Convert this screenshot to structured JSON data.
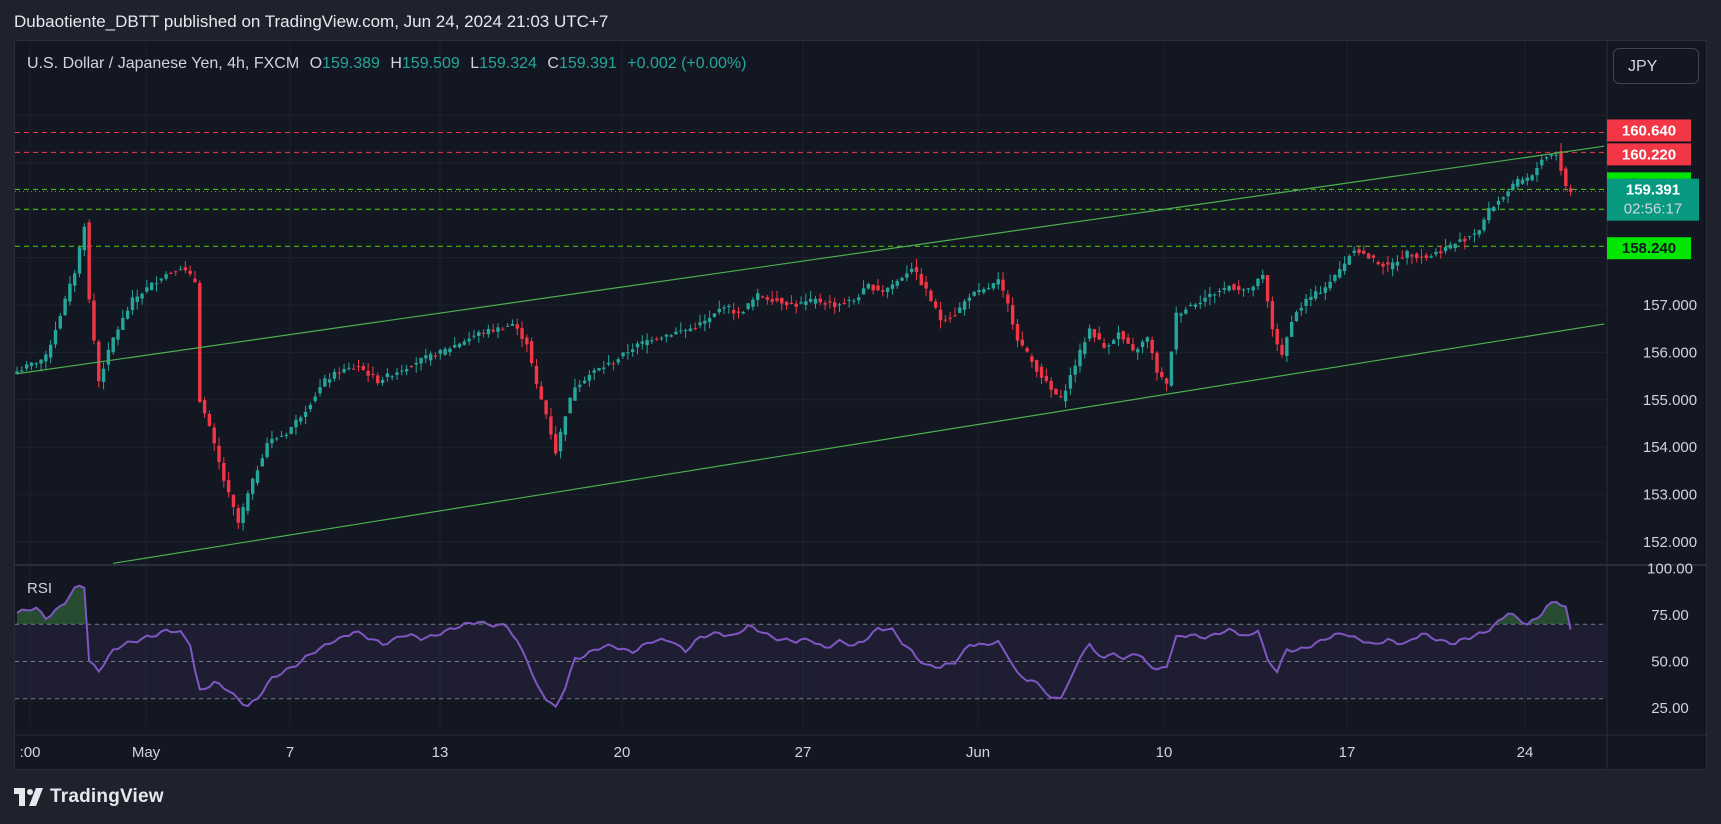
{
  "publisher": "Dubaotiente_DBTT published on TradingView.com, Jun 24, 2024 21:03 UTC+7",
  "legend": {
    "symbol": "U.S. Dollar / Japanese Yen, 4h, FXCM",
    "o_label": "O",
    "o": "159.389",
    "h_label": "H",
    "h": "159.509",
    "l_label": "L",
    "l": "159.324",
    "c_label": "C",
    "c": "159.391",
    "change": "+0.002 (+0.00%)"
  },
  "currency_button": "JPY",
  "rsi_label": "RSI",
  "footer_brand": "TradingView",
  "colors": {
    "up": "#26a69a",
    "down": "#f23645",
    "bg": "#131722",
    "grid": "#1e222d",
    "channel": "#4caf50",
    "rsi": "#7e57c2",
    "red_line": "#f23645",
    "green_line": "#4cd30d"
  },
  "chart_data": {
    "type": "candlestick",
    "symbol": "USDJPY",
    "timeframe": "4h",
    "ylim": [
      151.5,
      161.6
    ],
    "yticks": [
      "152.000",
      "153.000",
      "154.000",
      "155.000",
      "156.000",
      "157.000"
    ],
    "xticks": [
      ":00",
      "May",
      "7",
      "13",
      "20",
      "27",
      "Jun",
      "10",
      "17",
      "24"
    ],
    "price_levels": [
      {
        "value": 160.64,
        "label": "160.640",
        "color": "#f23645",
        "style": "dashed"
      },
      {
        "value": 160.22,
        "label": "160.220",
        "color": "#f23645",
        "style": "dashed"
      },
      {
        "value": 159.44,
        "label": "159.440",
        "color": "#4cd30d",
        "style": "dashed"
      },
      {
        "value": 159.02,
        "label": "159.020",
        "color": "#4cd30d",
        "style": "dashed"
      },
      {
        "value": 158.24,
        "label": "158.240",
        "color": "#4cd30d",
        "style": "dashed"
      }
    ],
    "current_price": {
      "value": 159.391,
      "label": "159.391",
      "countdown": "02:56:17"
    },
    "anchors": [
      [
        0,
        155.6
      ],
      [
        6,
        155.9
      ],
      [
        12,
        157.7
      ],
      [
        14,
        158.7
      ],
      [
        15,
        157.1
      ],
      [
        17,
        155.4
      ],
      [
        20,
        156.3
      ],
      [
        24,
        157.1
      ],
      [
        30,
        157.6
      ],
      [
        34,
        157.8
      ],
      [
        37,
        157.5
      ],
      [
        38,
        155.0
      ],
      [
        40,
        154.4
      ],
      [
        43,
        153.3
      ],
      [
        46,
        152.4
      ],
      [
        48,
        153.0
      ],
      [
        52,
        154.1
      ],
      [
        56,
        154.3
      ],
      [
        60,
        154.8
      ],
      [
        64,
        155.4
      ],
      [
        67,
        155.6
      ],
      [
        71,
        155.7
      ],
      [
        75,
        155.4
      ],
      [
        79,
        155.6
      ],
      [
        83,
        155.8
      ],
      [
        88,
        156.0
      ],
      [
        92,
        156.2
      ],
      [
        96,
        156.4
      ],
      [
        100,
        156.5
      ],
      [
        103,
        156.6
      ],
      [
        106,
        156.2
      ],
      [
        108,
        155.3
      ],
      [
        110,
        154.7
      ],
      [
        112,
        153.9
      ],
      [
        114,
        154.7
      ],
      [
        116,
        155.3
      ],
      [
        120,
        155.6
      ],
      [
        124,
        155.8
      ],
      [
        128,
        156.1
      ],
      [
        132,
        156.3
      ],
      [
        136,
        156.4
      ],
      [
        140,
        156.5
      ],
      [
        144,
        156.7
      ],
      [
        147,
        157.0
      ],
      [
        150,
        156.8
      ],
      [
        154,
        157.2
      ],
      [
        158,
        157.1
      ],
      [
        162,
        157.0
      ],
      [
        166,
        157.1
      ],
      [
        170,
        157.0
      ],
      [
        174,
        157.1
      ],
      [
        177,
        157.4
      ],
      [
        180,
        157.3
      ],
      [
        183,
        157.5
      ],
      [
        186,
        157.8
      ],
      [
        189,
        157.3
      ],
      [
        192,
        156.7
      ],
      [
        195,
        156.8
      ],
      [
        198,
        157.2
      ],
      [
        201,
        157.3
      ],
      [
        204,
        157.5
      ],
      [
        206,
        157.0
      ],
      [
        208,
        156.3
      ],
      [
        211,
        155.8
      ],
      [
        213,
        155.5
      ],
      [
        215,
        155.2
      ],
      [
        217,
        155.0
      ],
      [
        219,
        155.5
      ],
      [
        221,
        156.0
      ],
      [
        223,
        156.5
      ],
      [
        226,
        156.1
      ],
      [
        229,
        156.4
      ],
      [
        232,
        156.0
      ],
      [
        235,
        156.3
      ],
      [
        237,
        155.6
      ],
      [
        239,
        155.3
      ],
      [
        241,
        156.8
      ],
      [
        244,
        157.0
      ],
      [
        248,
        157.2
      ],
      [
        252,
        157.4
      ],
      [
        256,
        157.3
      ],
      [
        259,
        157.6
      ],
      [
        261,
        156.5
      ],
      [
        263,
        155.9
      ],
      [
        265,
        156.7
      ],
      [
        268,
        157.1
      ],
      [
        271,
        157.3
      ],
      [
        274,
        157.6
      ],
      [
        276,
        157.9
      ],
      [
        278,
        158.2
      ],
      [
        281,
        158.0
      ],
      [
        285,
        157.8
      ],
      [
        289,
        158.1
      ],
      [
        293,
        158.0
      ],
      [
        297,
        158.2
      ],
      [
        301,
        158.4
      ],
      [
        304,
        158.6
      ],
      [
        306,
        159.0
      ],
      [
        309,
        159.3
      ],
      [
        312,
        159.6
      ],
      [
        315,
        159.7
      ],
      [
        317,
        160.1
      ],
      [
        320,
        160.2
      ],
      [
        322,
        159.5
      ],
      [
        323,
        159.39
      ]
    ],
    "channel_upper": {
      "start": {
        "i": 0,
        "y": 155.55
      },
      "end": {
        "i": 330,
        "y": 160.35
      }
    },
    "channel_lower": {
      "start": {
        "i": 20,
        "y": 151.55
      },
      "end": {
        "i": 330,
        "y": 156.6
      }
    },
    "rsi": {
      "ylim": [
        20,
        100
      ],
      "yticks": [
        "100.00",
        "75.00",
        "50.00",
        "25.00"
      ],
      "bands": [
        70,
        50,
        30
      ],
      "anchors": [
        [
          0,
          76
        ],
        [
          4,
          78
        ],
        [
          6,
          74
        ],
        [
          10,
          82
        ],
        [
          12,
          88
        ],
        [
          13,
          90
        ],
        [
          14,
          90
        ],
        [
          15,
          50
        ],
        [
          17,
          46
        ],
        [
          20,
          56
        ],
        [
          24,
          60
        ],
        [
          27,
          64
        ],
        [
          31,
          66
        ],
        [
          34,
          65
        ],
        [
          36,
          60
        ],
        [
          37,
          46
        ],
        [
          38,
          35
        ],
        [
          41,
          38
        ],
        [
          44,
          34
        ],
        [
          46,
          30
        ],
        [
          48,
          27
        ],
        [
          50,
          30
        ],
        [
          53,
          40
        ],
        [
          56,
          46
        ],
        [
          60,
          52
        ],
        [
          63,
          56
        ],
        [
          66,
          62
        ],
        [
          70,
          66
        ],
        [
          73,
          62
        ],
        [
          76,
          60
        ],
        [
          80,
          64
        ],
        [
          84,
          62
        ],
        [
          88,
          66
        ],
        [
          92,
          68
        ],
        [
          96,
          72
        ],
        [
          99,
          70
        ],
        [
          102,
          68
        ],
        [
          104,
          60
        ],
        [
          106,
          52
        ],
        [
          108,
          38
        ],
        [
          110,
          30
        ],
        [
          112,
          24
        ],
        [
          114,
          36
        ],
        [
          116,
          52
        ],
        [
          120,
          56
        ],
        [
          124,
          58
        ],
        [
          128,
          56
        ],
        [
          132,
          60
        ],
        [
          136,
          62
        ],
        [
          139,
          56
        ],
        [
          142,
          62
        ],
        [
          146,
          66
        ],
        [
          149,
          64
        ],
        [
          152,
          68
        ],
        [
          155,
          66
        ],
        [
          159,
          62
        ],
        [
          162,
          60
        ],
        [
          165,
          62
        ],
        [
          168,
          58
        ],
        [
          171,
          60
        ],
        [
          174,
          58
        ],
        [
          177,
          64
        ],
        [
          179,
          68
        ],
        [
          182,
          66
        ],
        [
          184,
          60
        ],
        [
          186,
          56
        ],
        [
          189,
          48
        ],
        [
          192,
          46
        ],
        [
          195,
          50
        ],
        [
          198,
          60
        ],
        [
          201,
          58
        ],
        [
          204,
          60
        ],
        [
          206,
          54
        ],
        [
          208,
          44
        ],
        [
          210,
          40
        ],
        [
          213,
          36
        ],
        [
          215,
          30
        ],
        [
          217,
          32
        ],
        [
          219,
          40
        ],
        [
          221,
          52
        ],
        [
          223,
          58
        ],
        [
          226,
          52
        ],
        [
          228,
          56
        ],
        [
          230,
          50
        ],
        [
          232,
          54
        ],
        [
          235,
          50
        ],
        [
          237,
          46
        ],
        [
          239,
          48
        ],
        [
          241,
          62
        ],
        [
          244,
          64
        ],
        [
          248,
          64
        ],
        [
          252,
          66
        ],
        [
          256,
          64
        ],
        [
          258,
          68
        ],
        [
          260,
          50
        ],
        [
          262,
          44
        ],
        [
          264,
          56
        ],
        [
          268,
          58
        ],
        [
          271,
          60
        ],
        [
          274,
          64
        ],
        [
          276,
          66
        ],
        [
          279,
          62
        ],
        [
          282,
          58
        ],
        [
          285,
          62
        ],
        [
          289,
          60
        ],
        [
          292,
          64
        ],
        [
          296,
          62
        ],
        [
          299,
          60
        ],
        [
          302,
          62
        ],
        [
          305,
          66
        ],
        [
          308,
          72
        ],
        [
          310,
          76
        ],
        [
          312,
          72
        ],
        [
          314,
          70
        ],
        [
          316,
          74
        ],
        [
          318,
          80
        ],
        [
          320,
          82
        ],
        [
          322,
          78
        ],
        [
          323,
          66
        ]
      ]
    }
  }
}
